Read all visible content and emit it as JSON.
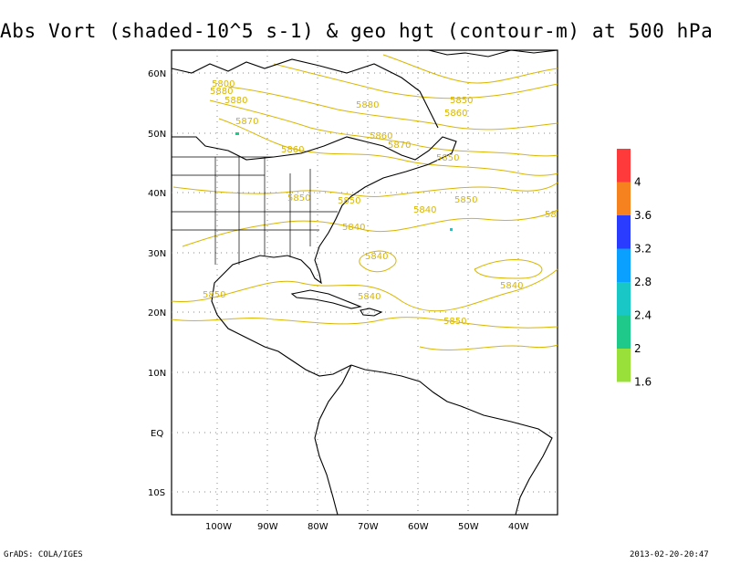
{
  "title": "Abs Vort (shaded-10^5 s-1) & geo hgt (contour-m) at 500 hPa",
  "footer": {
    "left": "GrADS: COLA/IGES",
    "right": "2013-02-20-20:47"
  },
  "map": {
    "lat_labels": [
      "60N",
      "50N",
      "40N",
      "30N",
      "20N",
      "10N",
      "EQ",
      "10S"
    ],
    "lon_labels": [
      "100W",
      "90W",
      "80W",
      "70W",
      "60W",
      "50W",
      "40W"
    ],
    "contour_labels": [
      "5800",
      "5880",
      "5880",
      "5870",
      "5850",
      "5860",
      "5850",
      "5850",
      "5840",
      "5840",
      "5850",
      "5840",
      "5850",
      "5840",
      "5850",
      "5860",
      "5870",
      "5860",
      "5880",
      "5850",
      "5840",
      "58"
    ],
    "contour_color": "#d9b600",
    "grid": true
  },
  "colorbar": {
    "labels": [
      "4",
      "3.6",
      "3.2",
      "2.8",
      "2.4",
      "2",
      "1.6"
    ],
    "colors": [
      "#ff3a3a",
      "#f5821f",
      "#2a3cff",
      "#0aa0ff",
      "#19c7c7",
      "#1ec98a",
      "#99e03a"
    ]
  }
}
